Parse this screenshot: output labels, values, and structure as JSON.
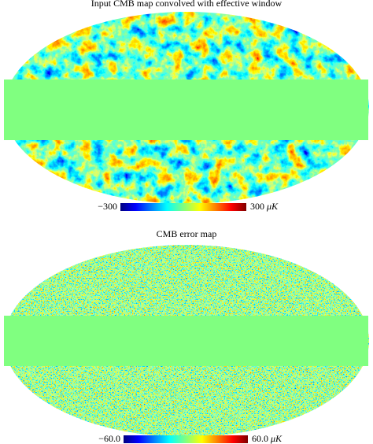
{
  "panels": [
    {
      "title": "Input CMB map convolved with effective window",
      "colorbar": {
        "ticks": [
          {
            "value": -300,
            "label": "−300"
          },
          {
            "value": 300,
            "label": "300"
          }
        ],
        "unit": "μK"
      }
    },
    {
      "title": "CMB error map",
      "colorbar": {
        "ticks": [
          {
            "value": -60,
            "label": "−60.0"
          },
          {
            "value": 60,
            "label": "60.0 "
          }
        ],
        "unit": "μK"
      }
    }
  ]
}
